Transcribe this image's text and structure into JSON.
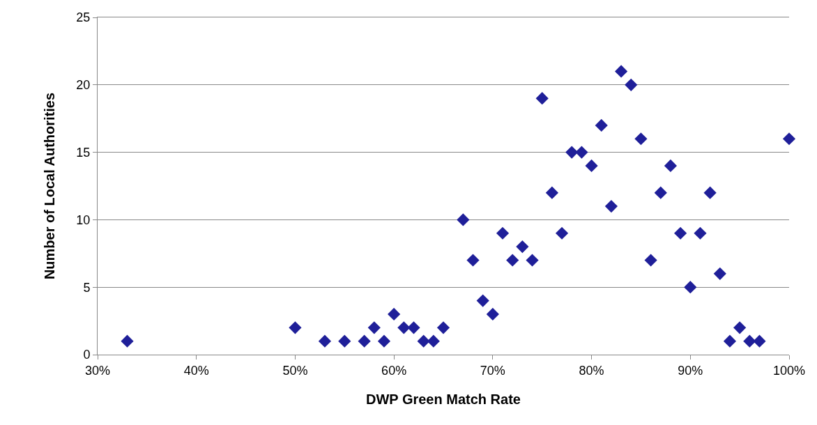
{
  "chart_data": {
    "type": "scatter",
    "xlabel": "DWP Green Match Rate",
    "ylabel": "Number of Local Authorities",
    "x": [
      33,
      50,
      53,
      55,
      57,
      58,
      59,
      60,
      61,
      62,
      63,
      64,
      65,
      67,
      68,
      69,
      70,
      71,
      72,
      73,
      74,
      75,
      76,
      77,
      78,
      79,
      80,
      81,
      82,
      83,
      84,
      85,
      86,
      87,
      88,
      89,
      90,
      91,
      92,
      93,
      94,
      95,
      96,
      97,
      100
    ],
    "series": [
      {
        "color": "#1f1f99",
        "values": [
          1,
          2,
          1,
          1,
          1,
          2,
          1,
          3,
          2,
          2,
          1,
          1,
          2,
          10,
          7,
          4,
          3,
          9,
          7,
          8,
          7,
          19,
          12,
          9,
          15,
          15,
          14,
          17,
          11,
          21,
          20,
          16,
          7,
          12,
          14,
          9,
          5,
          9,
          12,
          6,
          1,
          2,
          1,
          1,
          16
        ]
      }
    ],
    "xlim": [
      30,
      100
    ],
    "xticks": [
      {
        "value": 30,
        "label": "30%"
      },
      {
        "value": 40,
        "label": "40%"
      },
      {
        "value": 50,
        "label": "50%"
      },
      {
        "value": 60,
        "label": "60%"
      },
      {
        "value": 70,
        "label": "70%"
      },
      {
        "value": 80,
        "label": "80%"
      },
      {
        "value": 90,
        "label": "90%"
      },
      {
        "value": 100,
        "label": "100%"
      }
    ],
    "ylim": [
      0,
      25
    ],
    "yticks": [
      0,
      5,
      10,
      15,
      20,
      25
    ],
    "grid": "y",
    "marker": "diamond"
  }
}
